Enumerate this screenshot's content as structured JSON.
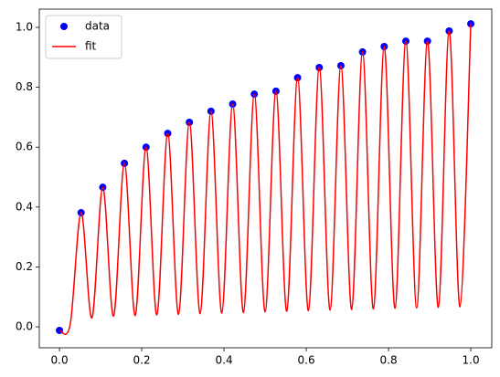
{
  "chart_data": {
    "type": "line",
    "series": [
      {
        "name": "data",
        "type": "scatter",
        "color": "#0000ff",
        "x": [
          0,
          0.0526,
          0.1053,
          0.1579,
          0.2105,
          0.2632,
          0.3158,
          0.3684,
          0.4211,
          0.4737,
          0.5263,
          0.5789,
          0.6316,
          0.6842,
          0.7368,
          0.7895,
          0.8421,
          0.8947,
          0.9474,
          1.0
        ],
        "values": [
          -0.012,
          0.381,
          0.466,
          0.546,
          0.6,
          0.646,
          0.683,
          0.72,
          0.744,
          0.777,
          0.787,
          0.832,
          0.866,
          0.872,
          0.918,
          0.936,
          0.954,
          0.954,
          0.988,
          1.012
        ]
      },
      {
        "name": "fit",
        "type": "line",
        "color": "#ff0000",
        "x": [
          0,
          0.0263,
          0.0526,
          0.0789,
          0.1053,
          0.1316,
          0.1579,
          0.1842,
          0.2105,
          0.2368,
          0.2632,
          0.2895,
          0.3158,
          0.3421,
          0.3684,
          0.3947,
          0.4211,
          0.4474,
          0.4737,
          0.5,
          0.5263,
          0.5526,
          0.5789,
          0.6053,
          0.6316,
          0.6579,
          0.6842,
          0.7105,
          0.7368,
          0.7632,
          0.7895,
          0.8158,
          0.8421,
          0.8684,
          0.8947,
          0.9211,
          0.9474,
          0.9737,
          1.0
        ],
        "values": [
          -0.012,
          0.01,
          0.381,
          0.03,
          0.466,
          0.036,
          0.546,
          0.038,
          0.6,
          0.04,
          0.646,
          0.042,
          0.683,
          0.044,
          0.72,
          0.046,
          0.744,
          0.048,
          0.777,
          0.05,
          0.787,
          0.052,
          0.832,
          0.054,
          0.866,
          0.056,
          0.872,
          0.058,
          0.918,
          0.06,
          0.936,
          0.062,
          0.954,
          0.063,
          0.954,
          0.065,
          0.988,
          0.067,
          1.012
        ]
      }
    ],
    "xlim": [
      -0.049,
      1.051
    ],
    "ylim": [
      -0.07,
      1.061
    ],
    "xticks": [
      {
        "value": 0,
        "label": "0.0"
      },
      0.2,
      0.4,
      0.6,
      0.8,
      {
        "value": 1,
        "label": "1.0"
      }
    ],
    "yticks": [
      {
        "value": 0,
        "label": "0.0"
      },
      0.2,
      0.4,
      0.6,
      0.8,
      {
        "value": 1,
        "label": "1.0"
      }
    ],
    "grid": false,
    "legend": "upper left"
  }
}
